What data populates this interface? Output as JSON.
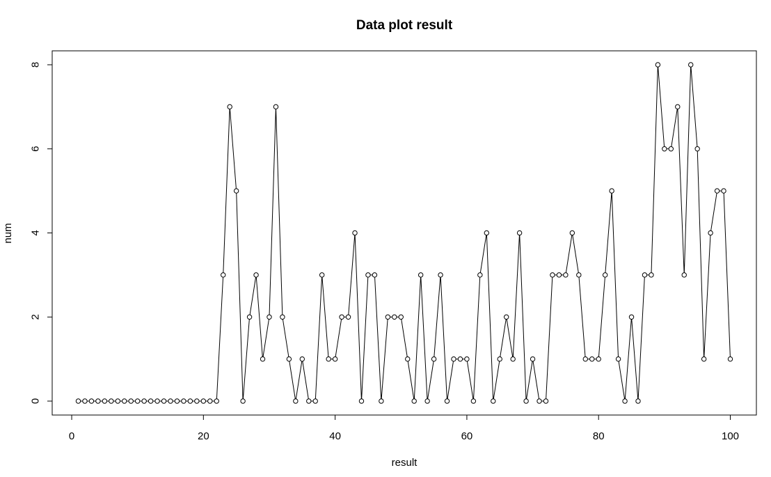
{
  "chart_data": {
    "type": "line",
    "title": "Data plot result",
    "xlabel": "result",
    "ylabel": "num",
    "xlim": [
      1,
      100
    ],
    "ylim": [
      0,
      8
    ],
    "xticks": [
      "0",
      "20",
      "40",
      "60",
      "80",
      "100"
    ],
    "yticks": [
      "0",
      "2",
      "4",
      "6",
      "8"
    ],
    "grid": false,
    "marker": "open-circle",
    "x": [
      1,
      2,
      3,
      4,
      5,
      6,
      7,
      8,
      9,
      10,
      11,
      12,
      13,
      14,
      15,
      16,
      17,
      18,
      19,
      20,
      21,
      22,
      23,
      24,
      25,
      26,
      27,
      28,
      29,
      30,
      31,
      32,
      33,
      34,
      35,
      36,
      37,
      38,
      39,
      40,
      41,
      42,
      43,
      44,
      45,
      46,
      47,
      48,
      49,
      50,
      51,
      52,
      53,
      54,
      55,
      56,
      57,
      58,
      59,
      60,
      61,
      62,
      63,
      64,
      65,
      66,
      67,
      68,
      69,
      70,
      71,
      72,
      73,
      74,
      75,
      76,
      77,
      78,
      79,
      80,
      81,
      82,
      83,
      84,
      85,
      86,
      87,
      88,
      89,
      90,
      91,
      92,
      93,
      94,
      95,
      96,
      97,
      98,
      99,
      100
    ],
    "values": [
      0,
      0,
      0,
      0,
      0,
      0,
      0,
      0,
      0,
      0,
      0,
      0,
      0,
      0,
      0,
      0,
      0,
      0,
      0,
      0,
      0,
      0,
      3,
      7,
      5,
      0,
      2,
      3,
      1,
      2,
      7,
      2,
      1,
      0,
      1,
      0,
      0,
      3,
      1,
      1,
      2,
      2,
      4,
      0,
      3,
      3,
      0,
      2,
      2,
      2,
      1,
      0,
      3,
      0,
      1,
      3,
      0,
      1,
      1,
      1,
      0,
      3,
      4,
      0,
      1,
      2,
      1,
      4,
      0,
      1,
      0,
      0,
      3,
      3,
      3,
      4,
      3,
      1,
      1,
      1,
      3,
      5,
      1,
      0,
      2,
      0,
      3,
      3,
      8,
      6,
      6,
      7,
      3,
      8,
      6,
      1,
      4,
      5,
      5,
      1
    ]
  }
}
